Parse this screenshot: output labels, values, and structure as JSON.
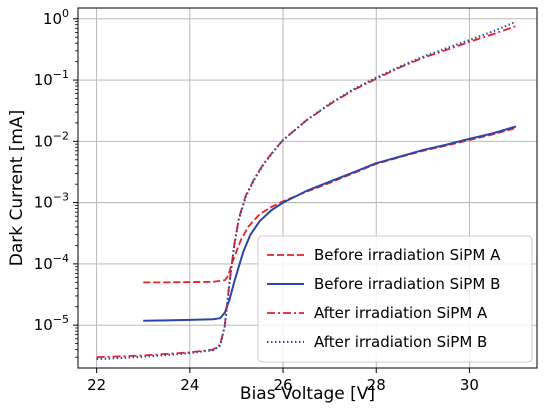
{
  "chart_data": {
    "type": "line",
    "xlabel": "Bias Voltage [V]",
    "ylabel": "Dark Current [mA]",
    "xlim": [
      21.6,
      31.45
    ],
    "ylim": [
      2e-06,
      1.5
    ],
    "yscale": "log",
    "grid": true,
    "legend_position": "lower-right",
    "x_ticks": [
      22,
      24,
      26,
      28,
      30
    ],
    "x_tick_labels": [
      "22",
      "24",
      "26",
      "28",
      "30"
    ],
    "y_ticks": [
      1e-05,
      0.0001,
      0.001,
      0.01,
      0.1,
      1
    ],
    "y_tick_labels": [
      {
        "base": "10",
        "exp": "−5"
      },
      {
        "base": "10",
        "exp": "−4"
      },
      {
        "base": "10",
        "exp": "−3"
      },
      {
        "base": "10",
        "exp": "−2"
      },
      {
        "base": "10",
        "exp": "−1"
      },
      {
        "base": "10",
        "exp": "0"
      }
    ],
    "series": [
      {
        "name": "Before irradiation SiPM A",
        "color": "#e8202a",
        "style": "dashed",
        "x": [
          23.0,
          23.5,
          24.0,
          24.5,
          24.75,
          24.8,
          24.85,
          24.9,
          25.0,
          25.1,
          25.25,
          25.5,
          25.75,
          26.0,
          26.5,
          27.0,
          27.5,
          28.0,
          28.5,
          29.0,
          29.5,
          30.0,
          30.5,
          31.0
        ],
        "y": [
          5e-05,
          5e-05,
          5.05e-05,
          5.1e-05,
          5.4e-05,
          6e-05,
          7.5e-05,
          0.0001,
          0.00016,
          0.00025,
          0.0004,
          0.00065,
          0.00085,
          0.00105,
          0.0015,
          0.0021,
          0.003,
          0.0043,
          0.0055,
          0.007,
          0.0085,
          0.0105,
          0.013,
          0.0165
        ]
      },
      {
        "name": "Before irradiation SiPM B",
        "color": "#2c45a8",
        "style": "solid",
        "x": [
          23.0,
          23.5,
          24.0,
          24.5,
          24.65,
          24.75,
          24.85,
          24.95,
          25.05,
          25.15,
          25.3,
          25.5,
          25.75,
          26.0,
          26.5,
          27.0,
          27.5,
          28.0,
          28.5,
          29.0,
          29.5,
          30.0,
          30.5,
          31.0
        ],
        "y": [
          1.18e-05,
          1.2e-05,
          1.22e-05,
          1.25e-05,
          1.3e-05,
          1.6e-05,
          2.6e-05,
          5e-05,
          9e-05,
          0.00016,
          0.0003,
          0.0005,
          0.00075,
          0.001,
          0.00155,
          0.0022,
          0.0031,
          0.0044,
          0.0056,
          0.0072,
          0.0088,
          0.011,
          0.0135,
          0.0175
        ]
      },
      {
        "name": "After irradiation SiPM A",
        "color": "#e8202a",
        "style": "dashdot",
        "x": [
          22.0,
          22.5,
          23.0,
          23.5,
          24.0,
          24.5,
          24.65,
          24.75,
          24.85,
          24.95,
          25.05,
          25.2,
          25.4,
          25.6,
          25.8,
          26.0,
          26.5,
          27.0,
          27.5,
          28.0,
          28.5,
          29.0,
          29.5,
          30.0,
          30.5,
          31.0
        ],
        "y": [
          3e-06,
          3.1e-06,
          3.2e-06,
          3.4e-06,
          3.6e-06,
          4e-06,
          4.8e-06,
          1e-05,
          5e-05,
          0.0002,
          0.00055,
          0.0013,
          0.0026,
          0.0045,
          0.007,
          0.0105,
          0.022,
          0.04,
          0.068,
          0.105,
          0.16,
          0.23,
          0.31,
          0.42,
          0.56,
          0.76
        ]
      },
      {
        "name": "After irradiation SiPM B",
        "color": "#2c45a8",
        "style": "dotted",
        "x": [
          22.0,
          22.5,
          23.0,
          23.5,
          24.0,
          24.5,
          24.65,
          24.75,
          24.85,
          24.95,
          25.05,
          25.2,
          25.4,
          25.6,
          25.8,
          26.0,
          26.5,
          27.0,
          27.5,
          28.0,
          28.5,
          29.0,
          29.5,
          30.0,
          30.5,
          31.0
        ],
        "y": [
          2.8e-06,
          2.9e-06,
          3.05e-06,
          3.25e-06,
          3.5e-06,
          3.9e-06,
          4.6e-06,
          9.5e-06,
          4.7e-05,
          0.00019,
          0.00053,
          0.00125,
          0.0025,
          0.0044,
          0.0069,
          0.0105,
          0.022,
          0.041,
          0.07,
          0.11,
          0.165,
          0.24,
          0.33,
          0.45,
          0.62,
          0.9
        ]
      }
    ]
  }
}
